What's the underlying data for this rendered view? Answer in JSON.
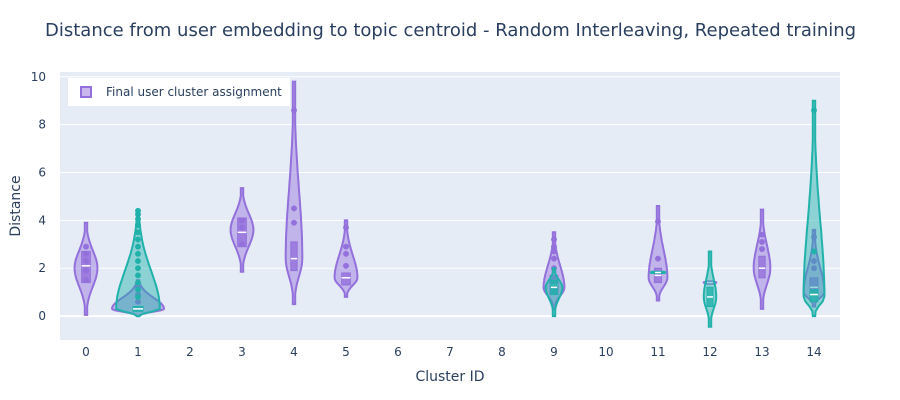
{
  "chart_data": {
    "type": "violin",
    "title": "Distance from user embedding to topic centroid - Random Interleaving, Repeated training",
    "xlabel": "Cluster ID",
    "ylabel": "Distance",
    "ylim": [
      -1.0,
      10.2
    ],
    "xlim": [
      -0.5,
      14.5
    ],
    "x_ticks": [
      "0",
      "1",
      "2",
      "3",
      "4",
      "5",
      "6",
      "7",
      "8",
      "9",
      "10",
      "11",
      "12",
      "13",
      "14"
    ],
    "y_ticks": [
      0,
      2,
      4,
      6,
      8,
      10
    ],
    "legend": {
      "position": "top-left",
      "entries": [
        "Final user cluster assignment"
      ]
    },
    "colors": {
      "primary": "#9370db",
      "secondary": "#20b2aa",
      "plot_bg": "#e5ecf6",
      "grid": "#ffffff",
      "text": "#2a3f5f"
    },
    "series": [
      {
        "name": "Final user cluster assignment",
        "color": "#9370db",
        "violins": [
          {
            "x": 0,
            "min": 0.05,
            "max": 3.9,
            "q1": 1.4,
            "median": 2.1,
            "q3": 2.7,
            "peak": 2.0,
            "width": 0.22,
            "points": [
              1.5,
              1.9,
              2.3,
              2.6,
              2.9
            ]
          },
          {
            "x": 1,
            "min": 0.0,
            "max": 1.5,
            "q1": 0.2,
            "median": 0.3,
            "q3": 0.4,
            "peak": 0.3,
            "width": 0.5,
            "points": [
              0.6,
              0.9,
              1.2
            ]
          },
          {
            "x": 3,
            "min": 1.85,
            "max": 5.35,
            "q1": 2.9,
            "median": 3.5,
            "q3": 4.1,
            "peak": 3.6,
            "width": 0.22,
            "points": [
              3.0,
              3.7,
              4.0
            ]
          },
          {
            "x": 4,
            "min": 0.5,
            "max": 9.8,
            "q1": 1.9,
            "median": 2.4,
            "q3": 3.1,
            "peak": 2.4,
            "width": 0.16,
            "points": [
              3.9,
              4.5,
              8.6
            ]
          },
          {
            "x": 5,
            "min": 0.8,
            "max": 4.0,
            "q1": 1.3,
            "median": 1.6,
            "q3": 1.8,
            "peak": 1.6,
            "width": 0.22,
            "points": [
              2.1,
              2.6,
              2.9,
              3.7
            ]
          },
          {
            "x": 9,
            "min": 0.3,
            "max": 3.5,
            "q1": 0.9,
            "median": 1.3,
            "q3": 1.7,
            "peak": 1.2,
            "width": 0.2,
            "points": [
              2.0,
              2.4,
              2.7,
              2.9,
              3.2
            ]
          },
          {
            "x": 11,
            "min": 0.65,
            "max": 4.6,
            "q1": 1.4,
            "median": 1.7,
            "q3": 2.0,
            "peak": 1.6,
            "width": 0.18,
            "points": [
              2.4,
              3.95
            ]
          },
          {
            "x": 12,
            "min": 1.35,
            "max": 1.45,
            "q1": 1.38,
            "median": 1.4,
            "q3": 1.42,
            "peak": 1.4,
            "width": 0.12,
            "points": []
          },
          {
            "x": 13,
            "min": 0.3,
            "max": 4.45,
            "q1": 1.6,
            "median": 2.0,
            "q3": 2.5,
            "peak": 2.0,
            "width": 0.16,
            "points": [
              2.8,
              3.1,
              3.4
            ]
          },
          {
            "x": 14,
            "min": 0.4,
            "max": 3.6,
            "q1": 0.9,
            "median": 1.2,
            "q3": 1.6,
            "peak": 1.0,
            "width": 0.2,
            "points": [
              2.0,
              2.3,
              3.3
            ]
          }
        ]
      },
      {
        "name": "",
        "color": "#20b2aa",
        "violins": [
          {
            "x": 1,
            "min": 0.0,
            "max": 4.4,
            "q1": 0.2,
            "median": 0.3,
            "q3": 0.4,
            "peak": 0.3,
            "width": 0.42,
            "points": [
              0.8,
              1.1,
              1.4,
              1.7,
              2.0,
              2.3,
              2.6,
              2.9,
              3.2,
              3.5,
              3.8,
              4.05,
              4.25,
              4.4
            ]
          },
          {
            "x": 9,
            "min": 0.0,
            "max": 2.0,
            "q1": 0.9,
            "median": 1.2,
            "q3": 1.5,
            "peak": 1.2,
            "width": 0.16,
            "points": []
          },
          {
            "x": 11,
            "min": 1.8,
            "max": 1.85,
            "q1": 1.8,
            "median": 1.82,
            "q3": 1.84,
            "peak": 1.82,
            "width": 0.14,
            "points": []
          },
          {
            "x": 12,
            "min": -0.45,
            "max": 2.7,
            "q1": 0.4,
            "median": 0.8,
            "q3": 1.2,
            "peak": 0.8,
            "width": 0.12,
            "points": []
          },
          {
            "x": 14,
            "min": 0.0,
            "max": 9.0,
            "q1": 0.6,
            "median": 0.9,
            "q3": 1.1,
            "peak": 0.8,
            "width": 0.2,
            "points": [
              2.7,
              8.6
            ]
          }
        ]
      }
    ]
  }
}
